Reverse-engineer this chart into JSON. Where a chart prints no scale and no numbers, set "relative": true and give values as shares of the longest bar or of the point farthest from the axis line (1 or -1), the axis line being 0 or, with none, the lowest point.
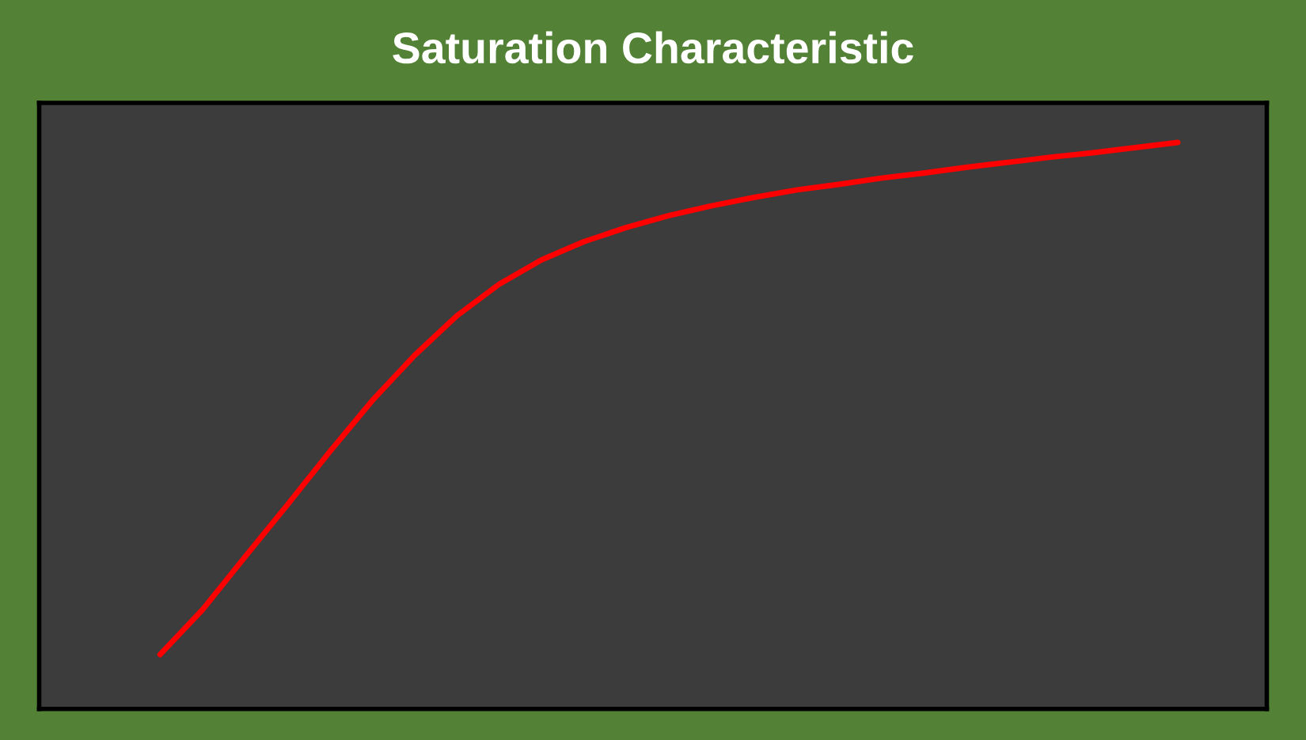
{
  "chart_data": {
    "type": "line",
    "title": "Saturation Characteristic",
    "relative": true,
    "categories": [
      null,
      null,
      null,
      null,
      null,
      null,
      null,
      null,
      null,
      null,
      null,
      null,
      null,
      null,
      null,
      null,
      null,
      null,
      null,
      null,
      null,
      null,
      null,
      null,
      null
    ],
    "series": [
      {
        "color": "#ff0000",
        "values": [
          0.096,
          0.175,
          0.268,
          0.36,
          0.454,
          0.544,
          0.624,
          0.694,
          0.75,
          0.793,
          0.825,
          0.85,
          0.871,
          0.888,
          0.903,
          0.916,
          0.926,
          0.937,
          0.946,
          0.956,
          0.965,
          0.974,
          0.982,
          0.991,
          1.0
        ]
      }
    ],
    "legend": false,
    "marker": "none",
    "line_style": "solid"
  }
}
